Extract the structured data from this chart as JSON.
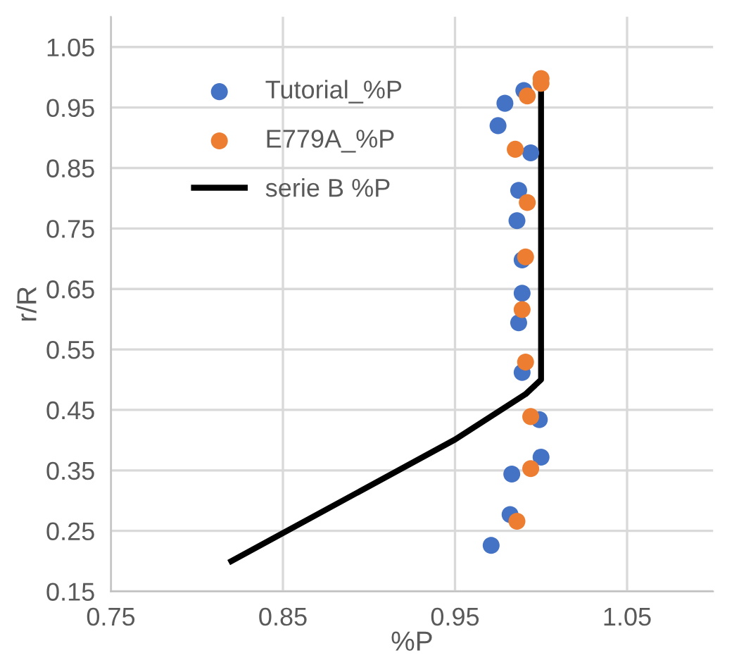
{
  "chart_data": {
    "type": "scatter",
    "xlabel": "%P",
    "ylabel": "r/R",
    "xlim": [
      0.75,
      1.1
    ],
    "xticks": [
      0.75,
      0.85,
      0.95,
      1.05
    ],
    "ylim": [
      0.15,
      1.1
    ],
    "yticks": [
      0.15,
      0.25,
      0.35,
      0.45,
      0.55,
      0.65,
      0.75,
      0.85,
      0.95,
      1.05
    ],
    "grid": true,
    "legend": "top left",
    "marker": "circle",
    "series": [
      {
        "name": "Tutorial_%P",
        "color": "#4472c4",
        "x": [
          0.99,
          0.979,
          0.975,
          0.994,
          0.987,
          0.986,
          0.989,
          0.989,
          0.987,
          0.989,
          0.999,
          1.0,
          0.983,
          0.982,
          0.971
        ],
        "values": [
          0.978,
          0.957,
          0.92,
          0.875,
          0.813,
          0.763,
          0.698,
          0.643,
          0.594,
          0.512,
          0.434,
          0.372,
          0.344,
          0.277,
          0.226
        ]
      },
      {
        "name": "E779A_%P",
        "color": "#ed7d31",
        "x": [
          1.0,
          1.0,
          0.992,
          0.985,
          0.992,
          0.991,
          0.989,
          0.991,
          0.994,
          0.994,
          0.986
        ],
        "values": [
          0.998,
          0.99,
          0.969,
          0.881,
          0.793,
          0.703,
          0.616,
          0.529,
          0.439,
          0.353,
          0.266
        ]
      },
      {
        "name": "serie B %P",
        "type": "line",
        "color": "#000000",
        "marker": "none",
        "x": [
          0.82,
          0.95,
          0.991,
          1.0,
          1.0
        ],
        "values": [
          0.2,
          0.401,
          0.476,
          0.5,
          0.975
        ]
      }
    ]
  }
}
